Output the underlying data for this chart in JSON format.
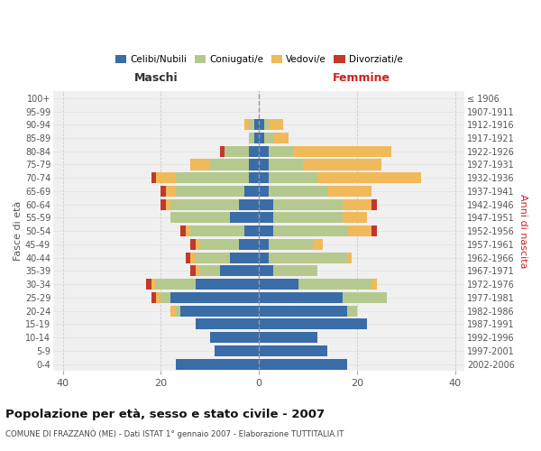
{
  "age_groups": [
    "0-4",
    "5-9",
    "10-14",
    "15-19",
    "20-24",
    "25-29",
    "30-34",
    "35-39",
    "40-44",
    "45-49",
    "50-54",
    "55-59",
    "60-64",
    "65-69",
    "70-74",
    "75-79",
    "80-84",
    "85-89",
    "90-94",
    "95-99",
    "100+"
  ],
  "birth_years": [
    "2002-2006",
    "1997-2001",
    "1992-1996",
    "1987-1991",
    "1982-1986",
    "1977-1981",
    "1972-1976",
    "1967-1971",
    "1962-1966",
    "1957-1961",
    "1952-1956",
    "1947-1951",
    "1942-1946",
    "1937-1941",
    "1932-1936",
    "1927-1931",
    "1922-1926",
    "1917-1921",
    "1912-1916",
    "1907-1911",
    "≤ 1906"
  ],
  "maschi": {
    "celibi": [
      17,
      9,
      10,
      13,
      16,
      18,
      13,
      8,
      6,
      4,
      3,
      6,
      4,
      3,
      2,
      2,
      2,
      1,
      1,
      0,
      0
    ],
    "coniugati": [
      0,
      0,
      0,
      0,
      1,
      2,
      8,
      4,
      7,
      8,
      11,
      12,
      14,
      14,
      15,
      8,
      5,
      1,
      1,
      0,
      0
    ],
    "vedovi": [
      0,
      0,
      0,
      0,
      1,
      1,
      1,
      1,
      1,
      1,
      1,
      0,
      1,
      2,
      4,
      4,
      0,
      0,
      1,
      0,
      0
    ],
    "divorziati": [
      0,
      0,
      0,
      0,
      0,
      1,
      1,
      1,
      1,
      1,
      1,
      0,
      1,
      1,
      1,
      0,
      1,
      0,
      0,
      0,
      0
    ]
  },
  "femmine": {
    "nubili": [
      18,
      14,
      12,
      22,
      18,
      17,
      8,
      3,
      2,
      2,
      3,
      3,
      3,
      2,
      2,
      2,
      2,
      1,
      1,
      0,
      0
    ],
    "coniugate": [
      0,
      0,
      0,
      0,
      2,
      9,
      15,
      9,
      16,
      9,
      15,
      14,
      14,
      12,
      10,
      7,
      5,
      2,
      1,
      0,
      0
    ],
    "vedove": [
      0,
      0,
      0,
      0,
      0,
      0,
      1,
      0,
      1,
      2,
      5,
      5,
      6,
      9,
      21,
      16,
      20,
      3,
      3,
      0,
      0
    ],
    "divorziate": [
      0,
      0,
      0,
      0,
      0,
      0,
      0,
      0,
      0,
      0,
      1,
      0,
      1,
      0,
      0,
      0,
      0,
      0,
      0,
      0,
      0
    ]
  },
  "colors": {
    "celibi": "#3a6ca8",
    "coniugati": "#b5c98e",
    "vedovi": "#f0b95a",
    "divorziati": "#c0392b"
  },
  "xlim": 42,
  "title": "Popolazione per età, sesso e stato civile - 2007",
  "subtitle": "COMUNE DI FRAZZANÒ (ME) - Dati ISTAT 1° gennaio 2007 - Elaborazione TUTTITALIA.IT",
  "xlabel_left": "Maschi",
  "xlabel_right": "Femmine",
  "ylabel_left": "Fasce di età",
  "ylabel_right": "Anni di nascita",
  "background_color": "#f0f0f0",
  "grid_color": "#cccccc"
}
